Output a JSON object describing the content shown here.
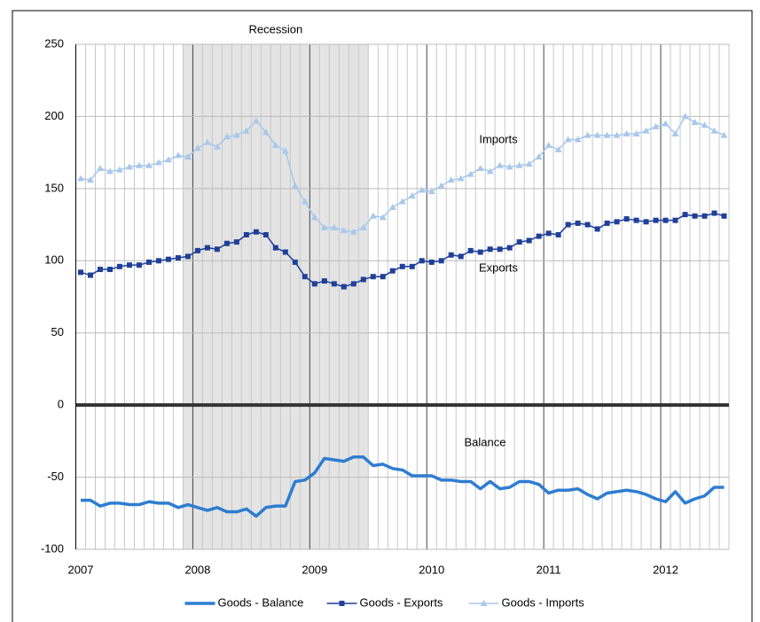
{
  "chart_data": {
    "type": "line",
    "categories": [
      "2007",
      null,
      null,
      null,
      null,
      null,
      null,
      null,
      null,
      null,
      null,
      null,
      "2008",
      null,
      null,
      null,
      null,
      null,
      null,
      null,
      null,
      null,
      null,
      null,
      "2009",
      null,
      null,
      null,
      null,
      null,
      null,
      null,
      null,
      null,
      null,
      null,
      "2010",
      null,
      null,
      null,
      null,
      null,
      null,
      null,
      null,
      null,
      null,
      null,
      "2011",
      null,
      null,
      null,
      null,
      null,
      null,
      null,
      null,
      null,
      null,
      null,
      "2012",
      null,
      null,
      null,
      null,
      null,
      null
    ],
    "series": [
      {
        "name": "Goods - Balance",
        "color": "#2e7dd1",
        "marker": "none",
        "values": [
          -66,
          -66,
          -70,
          -68,
          -68,
          -69,
          -69,
          -67,
          -68,
          -68,
          -71,
          -69,
          -71,
          -73,
          -71,
          -74,
          -74,
          -72,
          -77,
          -71,
          -70,
          -70,
          -53,
          -52,
          -47,
          -37,
          -38,
          -39,
          -36,
          -36,
          -42,
          -41,
          -44,
          -45,
          -49,
          -49,
          -49,
          -52,
          -52,
          -53,
          -53,
          -58,
          -53,
          -58,
          -57,
          -53,
          -53,
          -55,
          -61,
          -59,
          -59,
          -58,
          -62,
          -65,
          -61,
          -60,
          -59,
          -60,
          -62,
          -65,
          -67,
          -60,
          -68,
          -65,
          -63,
          -57,
          -57
        ]
      },
      {
        "name": "Goods - Exports",
        "color": "#1f3f99",
        "marker": "square",
        "values": [
          92,
          90,
          94,
          94,
          96,
          97,
          97,
          99,
          100,
          101,
          102,
          103,
          107,
          109,
          108,
          112,
          113,
          118,
          120,
          118,
          109,
          106,
          99,
          89,
          84,
          86,
          84,
          82,
          84,
          87,
          89,
          89,
          93,
          96,
          96,
          100,
          99,
          100,
          104,
          103,
          107,
          106,
          108,
          108,
          109,
          113,
          114,
          117,
          119,
          118,
          125,
          126,
          125,
          122,
          126,
          127,
          129,
          128,
          127,
          128,
          128,
          128,
          132,
          131,
          131,
          133,
          131
        ]
      },
      {
        "name": "Goods - Imports",
        "color": "#a8c8ec",
        "marker": "triangle",
        "values": [
          157,
          156,
          164,
          162,
          163,
          165,
          166,
          166,
          168,
          170,
          173,
          172,
          178,
          182,
          179,
          186,
          187,
          190,
          197,
          189,
          180,
          176,
          152,
          141,
          130,
          123,
          123,
          121,
          120,
          123,
          131,
          130,
          137,
          141,
          145,
          149,
          148,
          152,
          156,
          157,
          160,
          164,
          162,
          166,
          165,
          166,
          167,
          172,
          180,
          177,
          184,
          184,
          187,
          187,
          187,
          187,
          188,
          188,
          190,
          193,
          195,
          188,
          200,
          196,
          194,
          190,
          187
        ]
      }
    ],
    "annotations": [
      "Imports",
      "Exports",
      "Balance"
    ],
    "recession": {
      "label": "Recession",
      "start": 11,
      "end": 29
    },
    "ylim": [
      -100,
      250
    ],
    "yticks": [
      -100,
      -50,
      0,
      50,
      100,
      150,
      200,
      250
    ],
    "grid": true
  }
}
